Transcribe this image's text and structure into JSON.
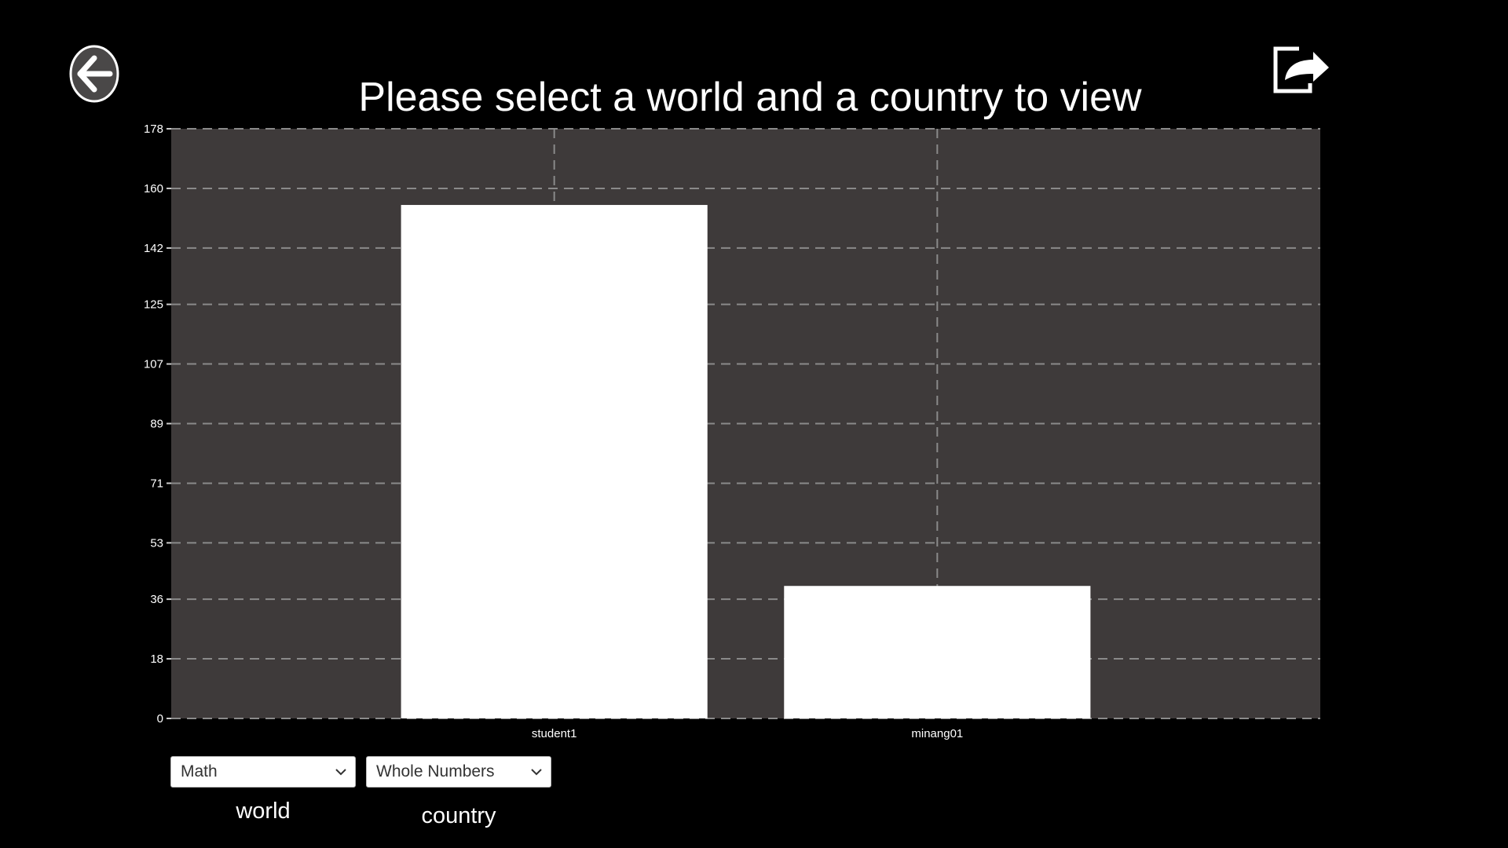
{
  "title": "Please select a world and a country to view",
  "back_icon": "arrow-left-circle-icon",
  "share_icon": "share-export-icon",
  "colors": {
    "background": "#000000",
    "plot_background": "#3e3a3a",
    "bar": "#ffffff",
    "grid": "#8a8a8a",
    "text": "#ffffff"
  },
  "controls": {
    "world_select": {
      "value": "Math",
      "label": "world"
    },
    "country_select": {
      "value": "Whole Numbers",
      "label": "country"
    }
  },
  "chart_data": {
    "type": "bar",
    "categories": [
      "student1",
      "minang01"
    ],
    "values": [
      155,
      40
    ],
    "ylim": [
      0,
      178
    ],
    "yticks": [
      0,
      18,
      36,
      53,
      71,
      89,
      107,
      125,
      142,
      160,
      178
    ],
    "xlabel": "",
    "ylabel": "",
    "grid": true,
    "grid_style": "dashed"
  }
}
